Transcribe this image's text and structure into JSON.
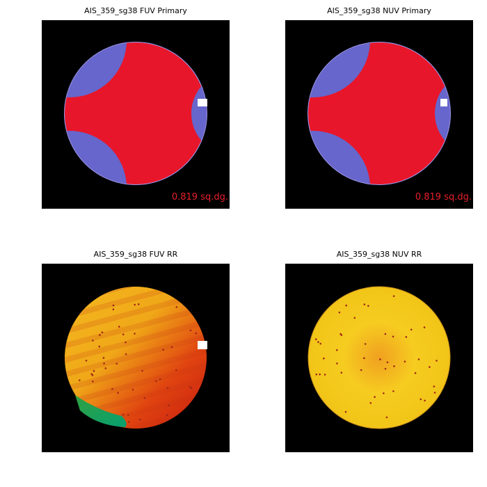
{
  "panels": [
    {
      "title": "AIS_359_sg38 FUV Primary",
      "label": "0.819 sq.dg."
    },
    {
      "title": "AIS_359_sg38 NUV Primary",
      "label": "0.819 sq.dg."
    },
    {
      "title": "AIS_359_sg38 FUV RR"
    },
    {
      "title": "AIS_359_sg38 NUV RR"
    }
  ]
}
